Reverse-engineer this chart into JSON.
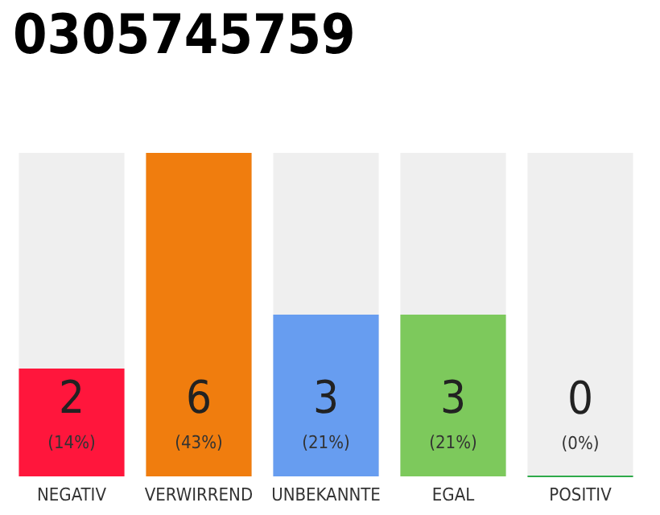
{
  "chart_data": {
    "type": "bar",
    "title": "0305745759",
    "categories": [
      "NEGATIV",
      "VERWIRREND",
      "UNBEKANNTE",
      "EGAL",
      "POSITIV"
    ],
    "values": [
      2,
      6,
      3,
      3,
      0
    ],
    "colors": [
      "#ff163c",
      "#f07d0e",
      "#679df0",
      "#7dc95c",
      "#2eaa4a"
    ],
    "value_labels": [
      "2\n(14%)",
      "6\n(43%)",
      "3\n(21%)",
      "3\n(21%)",
      "0\n(0%)"
    ],
    "tick_labels": "x"
  }
}
